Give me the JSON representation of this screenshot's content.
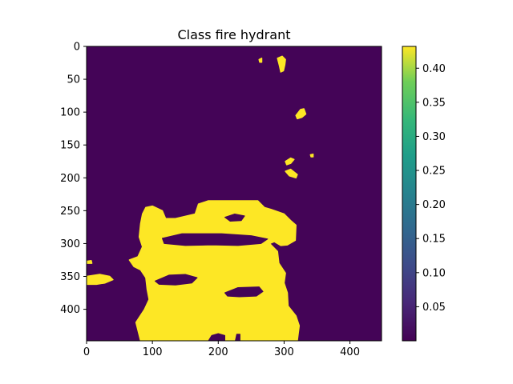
{
  "chart_data": {
    "type": "heatmap",
    "title": "Class fire hydrant",
    "colormap": "viridis",
    "image_width": 448,
    "image_height": 448,
    "xlim": [
      0,
      448
    ],
    "ylim": [
      448,
      0
    ],
    "x_ticks": [
      0,
      100,
      200,
      300,
      400
    ],
    "y_ticks": [
      0,
      50,
      100,
      150,
      200,
      250,
      300,
      350,
      400
    ],
    "colorbar": {
      "range": [
        0.0,
        0.432
      ],
      "ticks": [
        0.05,
        0.1,
        0.15,
        0.2,
        0.25,
        0.3,
        0.35,
        0.4
      ],
      "tick_labels": [
        "0.05",
        "0.10",
        "0.15",
        "0.20",
        "0.25",
        "0.30",
        "0.35",
        "0.40"
      ]
    },
    "background_value": 0.005,
    "high_value": 0.432,
    "high_regions": [
      {
        "name": "main-blob",
        "value": 0.432,
        "polygon": [
          [
            82,
            448
          ],
          [
            75,
            420
          ],
          [
            88,
            400
          ],
          [
            95,
            385
          ],
          [
            92,
            370
          ],
          [
            90,
            352
          ],
          [
            82,
            340
          ],
          [
            72,
            335
          ],
          [
            65,
            325
          ],
          [
            78,
            320
          ],
          [
            85,
            305
          ],
          [
            80,
            290
          ],
          [
            82,
            270
          ],
          [
            85,
            255
          ],
          [
            90,
            245
          ],
          [
            100,
            243
          ],
          [
            115,
            250
          ],
          [
            120,
            262
          ],
          [
            135,
            262
          ],
          [
            165,
            255
          ],
          [
            170,
            240
          ],
          [
            185,
            235
          ],
          [
            260,
            235
          ],
          [
            270,
            245
          ],
          [
            280,
            248
          ],
          [
            300,
            255
          ],
          [
            310,
            265
          ],
          [
            318,
            272
          ],
          [
            317,
            295
          ],
          [
            305,
            302
          ],
          [
            295,
            303
          ],
          [
            285,
            297
          ],
          [
            278,
            300
          ],
          [
            290,
            312
          ],
          [
            292,
            330
          ],
          [
            302,
            345
          ],
          [
            300,
            360
          ],
          [
            305,
            375
          ],
          [
            306,
            395
          ],
          [
            318,
            410
          ],
          [
            323,
            425
          ],
          [
            320,
            448
          ]
        ]
      },
      {
        "name": "left-arm",
        "value": 0.432,
        "polygon": [
          [
            0,
            350
          ],
          [
            20,
            347
          ],
          [
            35,
            350
          ],
          [
            40,
            355
          ],
          [
            28,
            360
          ],
          [
            15,
            362
          ],
          [
            0,
            362
          ]
        ]
      },
      {
        "name": "left-dot",
        "value": 0.432,
        "polygon": [
          [
            0,
            327
          ],
          [
            7,
            326
          ],
          [
            8,
            330
          ],
          [
            0,
            330
          ]
        ]
      },
      {
        "name": "top-blob-a",
        "value": 0.432,
        "polygon": [
          [
            290,
            18
          ],
          [
            297,
            15
          ],
          [
            302,
            20
          ],
          [
            301,
            28
          ],
          [
            299,
            37
          ],
          [
            295,
            39
          ],
          [
            293,
            30
          ]
        ]
      },
      {
        "name": "top-blob-b",
        "value": 0.432,
        "polygon": [
          [
            262,
            20
          ],
          [
            266,
            18
          ],
          [
            266,
            24
          ],
          [
            263,
            24
          ]
        ]
      },
      {
        "name": "right-blob-a",
        "value": 0.432,
        "polygon": [
          [
            318,
            105
          ],
          [
            325,
            96
          ],
          [
            330,
            95
          ],
          [
            333,
            103
          ],
          [
            327,
            108
          ],
          [
            320,
            110
          ]
        ]
      },
      {
        "name": "right-blob-b",
        "value": 0.432,
        "polygon": [
          [
            302,
            175
          ],
          [
            310,
            170
          ],
          [
            315,
            172
          ],
          [
            310,
            178
          ],
          [
            304,
            180
          ]
        ]
      },
      {
        "name": "right-blob-c",
        "value": 0.432,
        "polygon": [
          [
            302,
            190
          ],
          [
            310,
            187
          ],
          [
            320,
            195
          ],
          [
            318,
            200
          ],
          [
            308,
            197
          ]
        ]
      },
      {
        "name": "right-dot",
        "value": 0.432,
        "polygon": [
          [
            340,
            165
          ],
          [
            344,
            164
          ],
          [
            344,
            168
          ],
          [
            341,
            168
          ]
        ]
      }
    ],
    "low_regions": [
      {
        "name": "hole-upper",
        "polygon": [
          [
            210,
            260
          ],
          [
            225,
            255
          ],
          [
            240,
            258
          ],
          [
            235,
            265
          ],
          [
            218,
            266
          ]
        ]
      },
      {
        "name": "hole-mid",
        "polygon": [
          [
            115,
            292
          ],
          [
            145,
            285
          ],
          [
            205,
            285
          ],
          [
            250,
            288
          ],
          [
            275,
            293
          ],
          [
            265,
            300
          ],
          [
            230,
            303
          ],
          [
            190,
            302
          ],
          [
            150,
            303
          ],
          [
            118,
            300
          ]
        ]
      },
      {
        "name": "hole-lower-left",
        "polygon": [
          [
            104,
            357
          ],
          [
            125,
            348
          ],
          [
            150,
            347
          ],
          [
            168,
            352
          ],
          [
            160,
            360
          ],
          [
            135,
            363
          ],
          [
            110,
            362
          ]
        ]
      },
      {
        "name": "hole-lower-right",
        "polygon": [
          [
            210,
            375
          ],
          [
            230,
            367
          ],
          [
            262,
            366
          ],
          [
            268,
            373
          ],
          [
            258,
            380
          ],
          [
            232,
            381
          ],
          [
            214,
            380
          ]
        ]
      },
      {
        "name": "hole-bottom",
        "polygon": [
          [
            185,
            448
          ],
          [
            190,
            440
          ],
          [
            200,
            437
          ],
          [
            210,
            440
          ],
          [
            210,
            448
          ]
        ]
      },
      {
        "name": "notch-bottom",
        "polygon": [
          [
            226,
            448
          ],
          [
            228,
            438
          ],
          [
            233,
            438
          ],
          [
            233,
            448
          ]
        ]
      }
    ]
  }
}
